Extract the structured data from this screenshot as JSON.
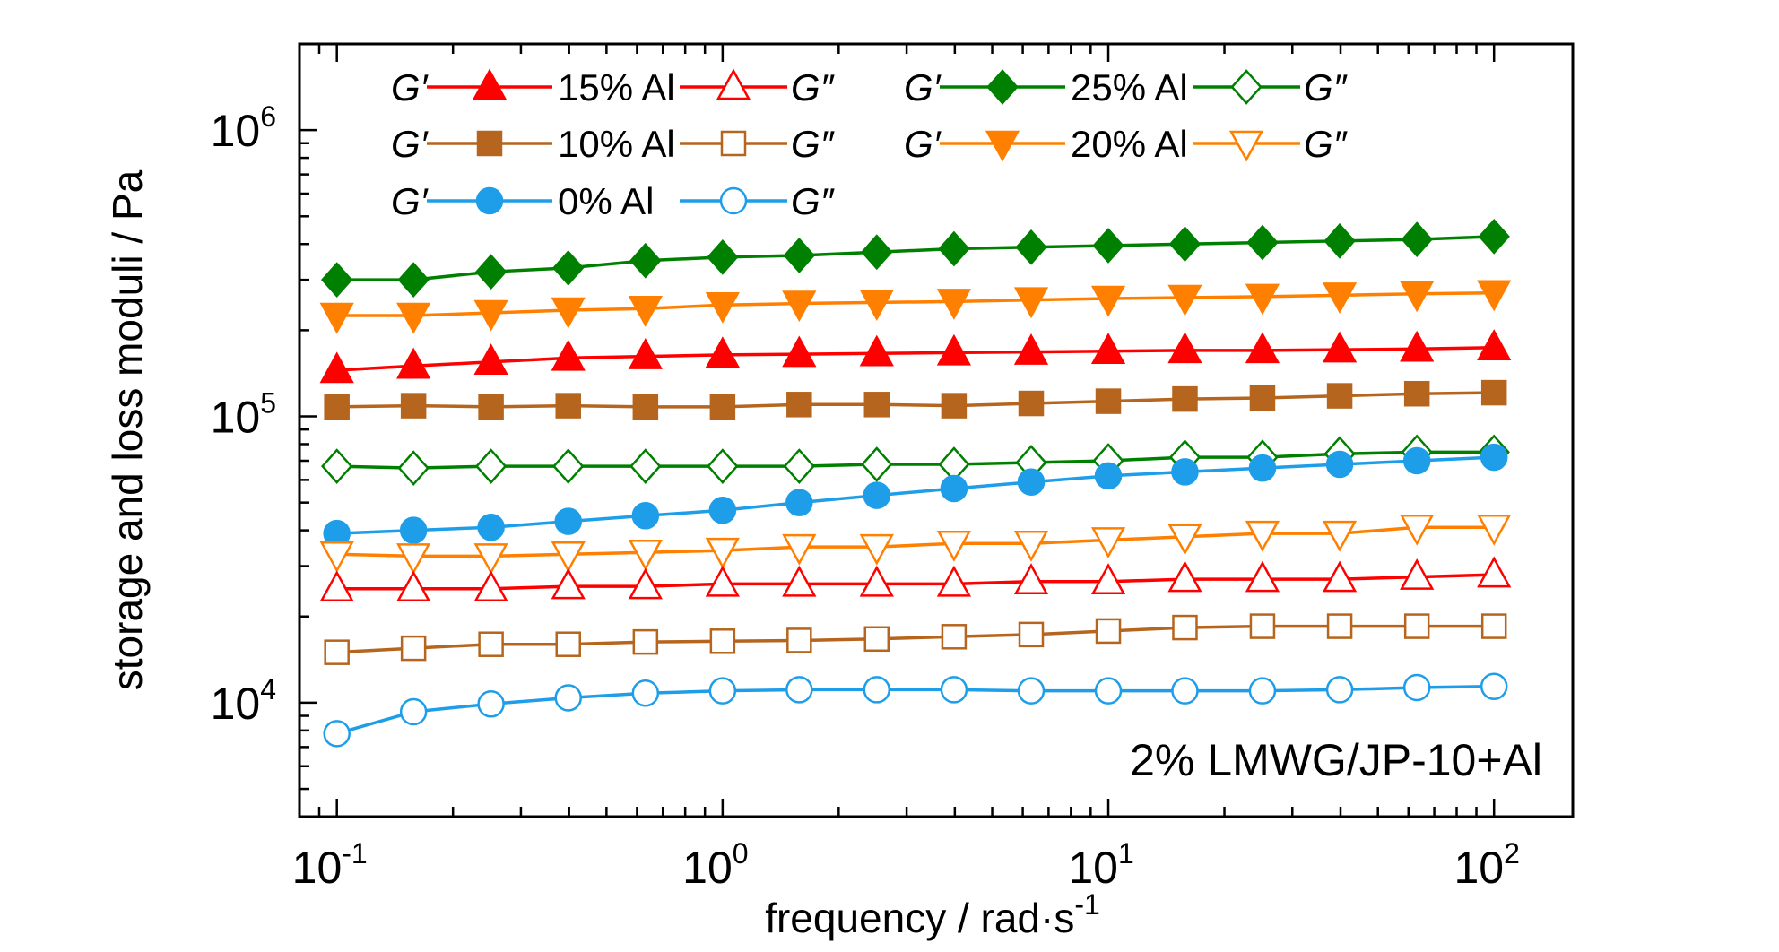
{
  "chart_data": {
    "type": "line",
    "x_scale": "log",
    "y_scale": "log",
    "xlim": [
      0.08,
      160
    ],
    "ylim": [
      4000,
      2000000
    ],
    "xlabel": "frequency / rad·s",
    "xlabel_exp": "-1",
    "ylabel": "storage and loss moduli / Pa",
    "annotation": "2% LMWG/JP-10+Al",
    "grid": false,
    "legend_position": "top-left",
    "x_ticks": [
      {
        "value": 0.1,
        "base": "10",
        "exp": "-1"
      },
      {
        "value": 1,
        "base": "10",
        "exp": "0"
      },
      {
        "value": 10,
        "base": "10",
        "exp": "1"
      },
      {
        "value": 100,
        "base": "10",
        "exp": "2"
      }
    ],
    "y_ticks": [
      {
        "value": 10000,
        "base": "10",
        "exp": "4"
      },
      {
        "value": 100000,
        "base": "10",
        "exp": "5"
      },
      {
        "value": 1000000,
        "base": "10",
        "exp": "6"
      }
    ],
    "x": [
      0.1,
      0.158,
      0.251,
      0.398,
      0.631,
      1.0,
      1.58,
      2.51,
      3.98,
      6.31,
      10.0,
      15.8,
      25.1,
      39.8,
      63.1,
      100
    ],
    "legend": [
      {
        "left": "G′",
        "label": "15% Al",
        "right": "G″",
        "color": "#ff0000",
        "marker": "triangle-up"
      },
      {
        "left": "G′",
        "label": "25% Al",
        "right": "G″",
        "color": "#008000",
        "marker": "diamond"
      },
      {
        "left": "G′",
        "label": "10% Al",
        "right": "G″",
        "color": "#b5651d",
        "marker": "square"
      },
      {
        "left": "G′",
        "label": "20% Al",
        "right": "G″",
        "color": "#ff8000",
        "marker": "triangle-down"
      },
      {
        "left": "G′",
        "label": "0%  Al",
        "right": "G″",
        "color": "#1e9ee8",
        "marker": "circle"
      }
    ],
    "series": [
      {
        "group": "25% Al",
        "modulus": "G′",
        "color": "#008000",
        "marker": "diamond",
        "filled": true,
        "values": [
          300000,
          300000,
          320000,
          330000,
          350000,
          360000,
          365000,
          375000,
          385000,
          390000,
          395000,
          400000,
          405000,
          410000,
          415000,
          425000
        ]
      },
      {
        "group": "20% Al",
        "modulus": "G′",
        "color": "#ff8000",
        "marker": "triangle-down",
        "filled": true,
        "values": [
          225000,
          225000,
          230000,
          235000,
          238000,
          245000,
          248000,
          250000,
          252000,
          255000,
          258000,
          260000,
          262000,
          265000,
          268000,
          270000
        ]
      },
      {
        "group": "15% Al",
        "modulus": "G′",
        "color": "#ff0000",
        "marker": "triangle-up",
        "filled": true,
        "values": [
          145000,
          150000,
          155000,
          160000,
          162000,
          164000,
          165000,
          166000,
          167000,
          168000,
          169000,
          170000,
          170000,
          171000,
          172000,
          174000
        ]
      },
      {
        "group": "10% Al",
        "modulus": "G′",
        "color": "#b5651d",
        "marker": "square",
        "filled": true,
        "values": [
          108000,
          109000,
          108000,
          109000,
          108000,
          108000,
          110000,
          110000,
          109000,
          111000,
          113000,
          115000,
          116000,
          118000,
          120000,
          121000
        ]
      },
      {
        "group": "25% Al",
        "modulus": "G″",
        "color": "#008000",
        "marker": "diamond",
        "filled": false,
        "values": [
          67000,
          66000,
          67000,
          67000,
          67000,
          67000,
          67000,
          68000,
          68000,
          69000,
          70000,
          72000,
          72000,
          74000,
          75000,
          75000
        ]
      },
      {
        "group": "0% Al",
        "modulus": "G′",
        "color": "#1e9ee8",
        "marker": "circle",
        "filled": true,
        "values": [
          39000,
          40000,
          41000,
          43000,
          45000,
          47000,
          50000,
          53000,
          56000,
          59000,
          62000,
          64000,
          66000,
          68000,
          70000,
          72000
        ]
      },
      {
        "group": "20% Al",
        "modulus": "G″",
        "color": "#ff8000",
        "marker": "triangle-down",
        "filled": false,
        "values": [
          33000,
          32500,
          32500,
          33000,
          33500,
          34000,
          35000,
          35000,
          36000,
          36000,
          37000,
          38000,
          39000,
          39000,
          41000,
          41000
        ]
      },
      {
        "group": "15% Al",
        "modulus": "G″",
        "color": "#ff0000",
        "marker": "triangle-up",
        "filled": false,
        "values": [
          25000,
          25000,
          25000,
          25500,
          25500,
          26000,
          26000,
          26000,
          26000,
          26500,
          26500,
          27000,
          27000,
          27000,
          27500,
          28000
        ]
      },
      {
        "group": "10% Al",
        "modulus": "G″",
        "color": "#b5651d",
        "marker": "square",
        "filled": false,
        "values": [
          15000,
          15500,
          16000,
          16000,
          16300,
          16400,
          16500,
          16700,
          17000,
          17300,
          17800,
          18300,
          18500,
          18500,
          18500,
          18500
        ]
      },
      {
        "group": "0% Al",
        "modulus": "G″",
        "color": "#1e9ee8",
        "marker": "circle",
        "filled": false,
        "values": [
          7800,
          9300,
          9900,
          10400,
          10800,
          11000,
          11100,
          11100,
          11100,
          11000,
          11000,
          11000,
          11000,
          11100,
          11300,
          11400
        ]
      }
    ]
  }
}
